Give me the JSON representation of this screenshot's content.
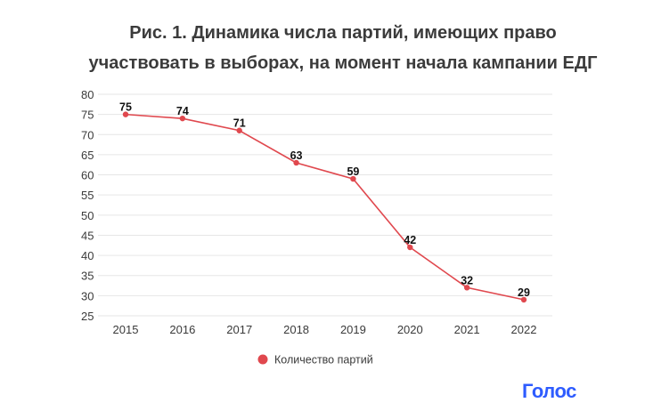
{
  "title": {
    "line1": "Рис. 1. Динамика числа партий, имеющих право",
    "line2": "участвовать в выборах, на момент начала кампании ЕДГ"
  },
  "logo_text": "Голос",
  "chart_data": {
    "type": "line",
    "title": "Рис. 1. Динамика числа партий, имеющих право участвовать в выборах, на момент начала кампании ЕДГ",
    "xlabel": "",
    "ylabel": "",
    "categories": [
      "2015",
      "2016",
      "2017",
      "2018",
      "2019",
      "2020",
      "2021",
      "2022"
    ],
    "series": [
      {
        "name": "Количество партий",
        "values": [
          75,
          74,
          71,
          63,
          59,
          42,
          32,
          29
        ]
      }
    ],
    "ylim": [
      25,
      80
    ],
    "yticks": [
      25,
      30,
      35,
      40,
      45,
      50,
      55,
      60,
      65,
      70,
      75,
      80
    ],
    "grid": true,
    "legend_position": "bottom-center",
    "data_labels": true,
    "colors": {
      "series": "#e0484e",
      "grid": "#e6e6e6",
      "axis_text": "#3a3a3a",
      "label_text": "#111111"
    }
  }
}
